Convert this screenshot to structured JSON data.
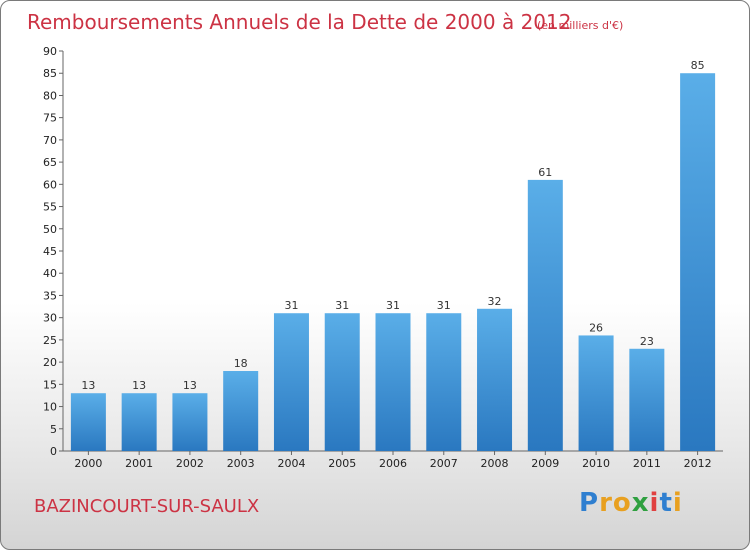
{
  "page": {
    "city": "BAZINCOURT-SUR-SAULX",
    "logo_letters": [
      {
        "ch": "P",
        "color": "#2f7fd0"
      },
      {
        "ch": "r",
        "color": "#e8a020"
      },
      {
        "ch": "o",
        "color": "#e8a020"
      },
      {
        "ch": "x",
        "color": "#2fa040"
      },
      {
        "ch": "i",
        "color": "#e04040"
      },
      {
        "ch": "t",
        "color": "#2f7fd0"
      },
      {
        "ch": "i",
        "color": "#e8a020"
      }
    ]
  },
  "chart_data": {
    "type": "bar",
    "title": "Remboursements Annuels de la Dette de 2000 à 2012",
    "subtitle": "(en milliers d'€)",
    "categories": [
      "2000",
      "2001",
      "2002",
      "2003",
      "2004",
      "2005",
      "2006",
      "2007",
      "2008",
      "2009",
      "2010",
      "2011",
      "2012"
    ],
    "values": [
      13,
      13,
      13,
      18,
      31,
      31,
      31,
      31,
      32,
      61,
      26,
      23,
      85
    ],
    "ylim": [
      0,
      90
    ],
    "ytick_step": 5,
    "grid": false,
    "colors": {
      "bar_light": "#5aaee8",
      "bar_dark": "#2a78c0",
      "axis": "#666666",
      "title": "#cc3344"
    }
  }
}
